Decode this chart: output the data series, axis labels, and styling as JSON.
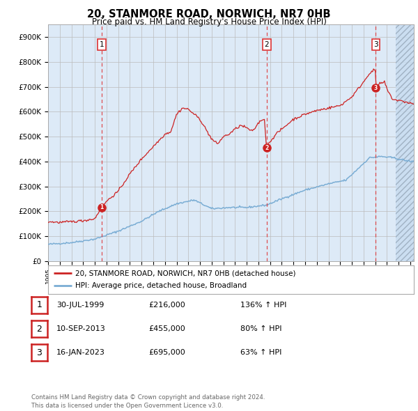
{
  "title": "20, STANMORE ROAD, NORWICH, NR7 0HB",
  "subtitle": "Price paid vs. HM Land Registry's House Price Index (HPI)",
  "xlim_start": 1995.0,
  "xlim_end": 2026.3,
  "ylim": [
    0,
    950000
  ],
  "yticks": [
    0,
    100000,
    200000,
    300000,
    400000,
    500000,
    600000,
    700000,
    800000,
    900000
  ],
  "ytick_labels": [
    "£0",
    "£100K",
    "£200K",
    "£300K",
    "£400K",
    "£500K",
    "£600K",
    "£700K",
    "£800K",
    "£900K"
  ],
  "sale1_date": 1999.58,
  "sale1_price": 216000,
  "sale1_label": "1",
  "sale2_date": 2013.7,
  "sale2_price": 455000,
  "sale2_label": "2",
  "sale3_date": 2023.05,
  "sale3_price": 695000,
  "sale3_label": "3",
  "hpi_color": "#7aadd4",
  "price_color": "#cc2222",
  "sale_marker_color": "#cc2222",
  "dashed_line_color": "#dd3333",
  "legend_label1": "20, STANMORE ROAD, NORWICH, NR7 0HB (detached house)",
  "legend_label2": "HPI: Average price, detached house, Broadland",
  "table_rows": [
    {
      "num": "1",
      "date": "30-JUL-1999",
      "price": "£216,000",
      "change": "136% ↑ HPI"
    },
    {
      "num": "2",
      "date": "10-SEP-2013",
      "price": "£455,000",
      "change": "80% ↑ HPI"
    },
    {
      "num": "3",
      "date": "16-JAN-2023",
      "price": "£695,000",
      "change": "63% ↑ HPI"
    }
  ],
  "footer": "Contains HM Land Registry data © Crown copyright and database right 2024.\nThis data is licensed under the Open Government Licence v3.0.",
  "bg_color": "#ddeaf7",
  "hatch_start": 2024.75
}
